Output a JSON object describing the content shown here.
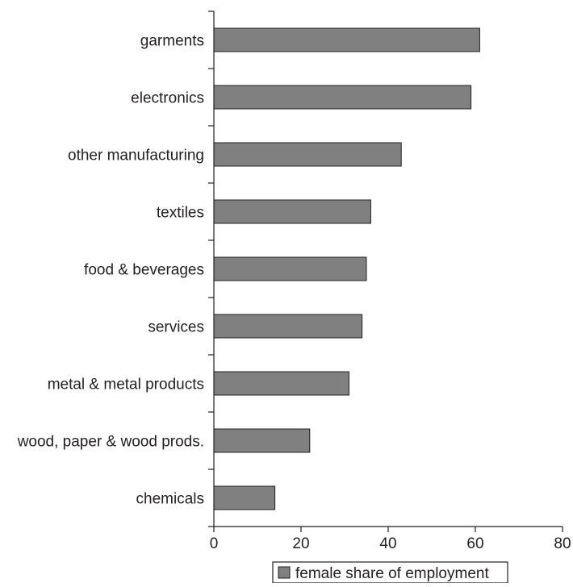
{
  "chart_data": {
    "type": "bar",
    "orientation": "horizontal",
    "categories": [
      "garments",
      "electronics",
      "other manufacturing",
      "textiles",
      "food & beverages",
      "services",
      "metal & metal products",
      "wood, paper & wood prods.",
      "chemicals"
    ],
    "series": [
      {
        "name": "female share of employment",
        "values": [
          61,
          59,
          43,
          36,
          35,
          34,
          31,
          22,
          14
        ],
        "color": "#808080"
      }
    ],
    "x_ticks": [
      "0",
      "20",
      "40",
      "60",
      "80"
    ],
    "xlim": [
      0,
      80
    ],
    "grid": false,
    "legend": {
      "position": "bottom-center",
      "label": "female share of employment"
    }
  }
}
